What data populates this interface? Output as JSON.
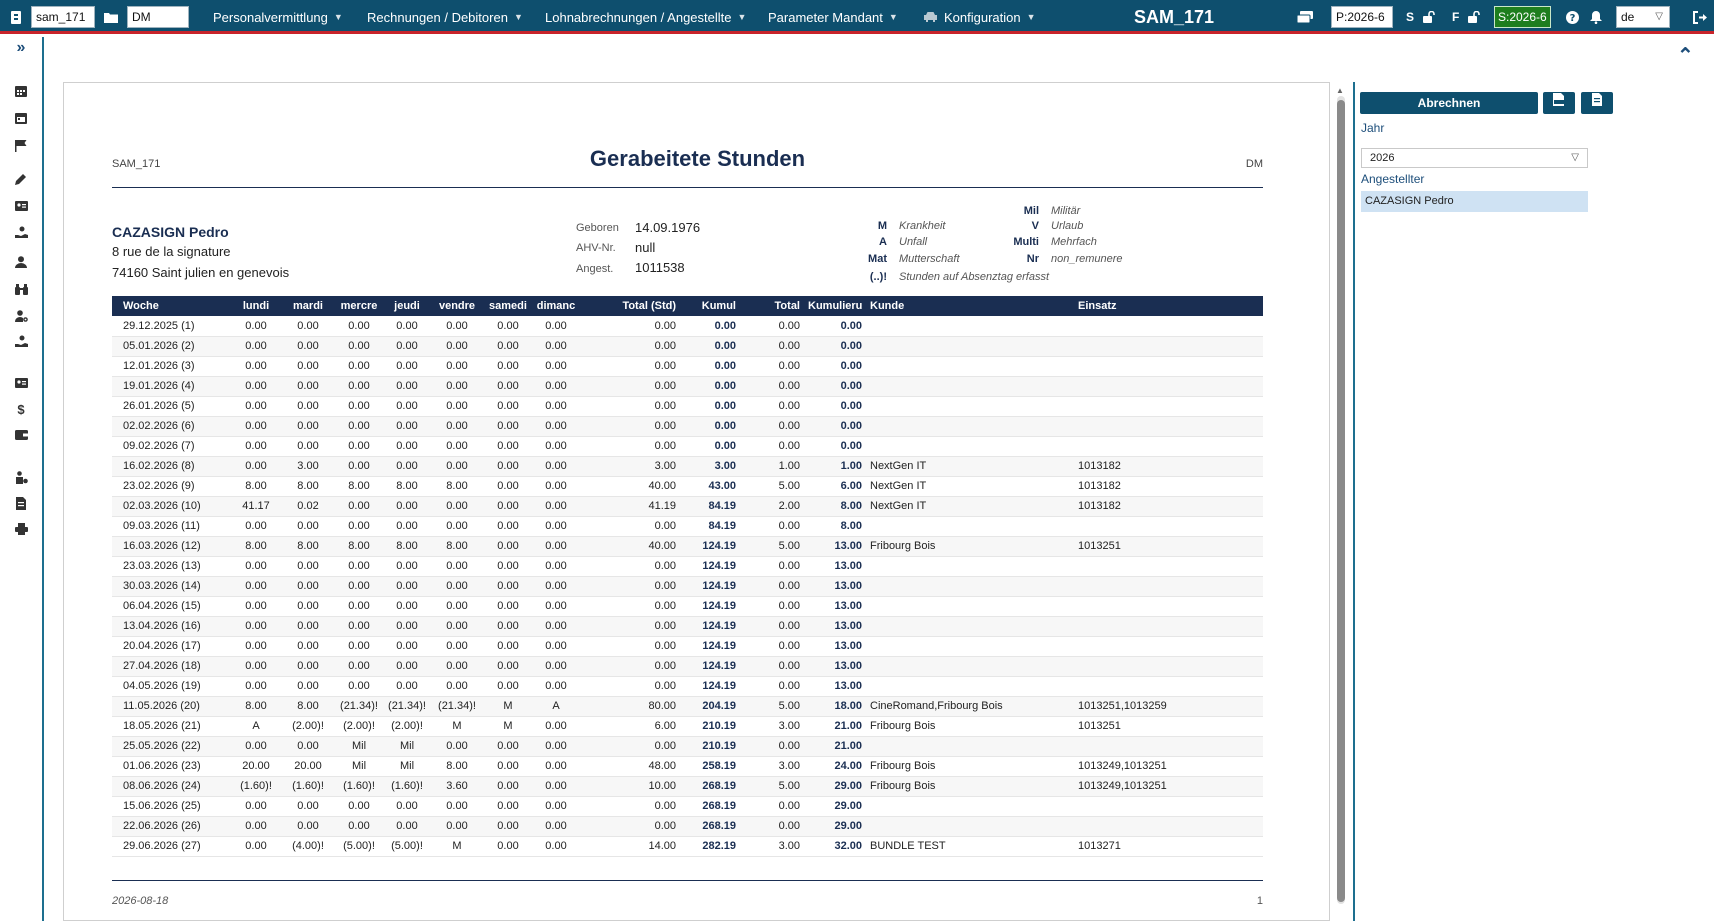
{
  "topbar": {
    "mandant_value": "sam_171",
    "folder_value": "DM",
    "menus": [
      {
        "label": "Personalvermittlung"
      },
      {
        "label": "Rechnungen / Debitoren"
      },
      {
        "label": "Lohnabrechnungen / Angestellte"
      },
      {
        "label": "Parameter Mandant"
      },
      {
        "label": "Konfiguration"
      }
    ],
    "app_title": "SAM_171",
    "period_value": "P:2026-6",
    "s_label": "S",
    "f_label": "F",
    "s_period": "S:2026-6",
    "language": "de"
  },
  "icons": {
    "sidebar": [
      "expand-icon",
      "calendar-icon",
      "calendar-icon",
      "flag-icon",
      "pencil-icon",
      "id-card-icon",
      "hand-coin-icon",
      "user-icon",
      "binoculars-icon",
      "user-cog-icon",
      "hand-coin-icon",
      "id-card-icon",
      "dollar-icon",
      "wallet-icon",
      "user-check-icon",
      "document-icon",
      "printer-icon"
    ]
  },
  "report": {
    "mandant": "SAM_171",
    "title": "Gerabeitete Stunden",
    "folder": "DM",
    "employee": {
      "name": "CAZASIGN Pedro",
      "street": "8 rue de la signature",
      "city": "74160 Saint julien en genevois"
    },
    "info": [
      {
        "label": "Geboren",
        "value": "14.09.1976"
      },
      {
        "label": "AHV-Nr.",
        "value": "null"
      },
      {
        "label": "Angest.",
        "value": "1011538"
      }
    ],
    "legend": [
      {
        "code": "Mil",
        "text": "Militär"
      },
      {
        "code": "M",
        "text": "Krankheit"
      },
      {
        "code": "V",
        "text": "Urlaub"
      },
      {
        "code": "A",
        "text": "Unfall"
      },
      {
        "code": "Multi",
        "text": "Mehrfach"
      },
      {
        "code": "Mat",
        "text": "Mutterschaft"
      },
      {
        "code": "Nr",
        "text": "non_remunere"
      },
      {
        "code": "(..)!",
        "text": "Stunden auf Absenztag erfasst"
      }
    ],
    "columns": [
      "Woche",
      "lundi",
      "mardi",
      "mercre",
      "jeudi",
      "vendre",
      "samedi",
      "dimanc",
      "Total (Std)",
      "Kumul",
      "Total",
      "Kumulieru",
      "Kunde",
      "Einsatz"
    ],
    "rows": [
      [
        "29.12.2025 (1)",
        "0.00",
        "0.00",
        "0.00",
        "0.00",
        "0.00",
        "0.00",
        "0.00",
        "0.00",
        "0.00",
        "0.00",
        "0.00",
        "",
        ""
      ],
      [
        "05.01.2026 (2)",
        "0.00",
        "0.00",
        "0.00",
        "0.00",
        "0.00",
        "0.00",
        "0.00",
        "0.00",
        "0.00",
        "0.00",
        "0.00",
        "",
        ""
      ],
      [
        "12.01.2026 (3)",
        "0.00",
        "0.00",
        "0.00",
        "0.00",
        "0.00",
        "0.00",
        "0.00",
        "0.00",
        "0.00",
        "0.00",
        "0.00",
        "",
        ""
      ],
      [
        "19.01.2026 (4)",
        "0.00",
        "0.00",
        "0.00",
        "0.00",
        "0.00",
        "0.00",
        "0.00",
        "0.00",
        "0.00",
        "0.00",
        "0.00",
        "",
        ""
      ],
      [
        "26.01.2026 (5)",
        "0.00",
        "0.00",
        "0.00",
        "0.00",
        "0.00",
        "0.00",
        "0.00",
        "0.00",
        "0.00",
        "0.00",
        "0.00",
        "",
        ""
      ],
      [
        "02.02.2026 (6)",
        "0.00",
        "0.00",
        "0.00",
        "0.00",
        "0.00",
        "0.00",
        "0.00",
        "0.00",
        "0.00",
        "0.00",
        "0.00",
        "",
        ""
      ],
      [
        "09.02.2026 (7)",
        "0.00",
        "0.00",
        "0.00",
        "0.00",
        "0.00",
        "0.00",
        "0.00",
        "0.00",
        "0.00",
        "0.00",
        "0.00",
        "",
        ""
      ],
      [
        "16.02.2026 (8)",
        "0.00",
        "3.00",
        "0.00",
        "0.00",
        "0.00",
        "0.00",
        "0.00",
        "3.00",
        "3.00",
        "1.00",
        "1.00",
        "NextGen IT",
        "1013182"
      ],
      [
        "23.02.2026 (9)",
        "8.00",
        "8.00",
        "8.00",
        "8.00",
        "8.00",
        "0.00",
        "0.00",
        "40.00",
        "43.00",
        "5.00",
        "6.00",
        "NextGen IT",
        "1013182"
      ],
      [
        "02.03.2026 (10)",
        "41.17",
        "0.02",
        "0.00",
        "0.00",
        "0.00",
        "0.00",
        "0.00",
        "41.19",
        "84.19",
        "2.00",
        "8.00",
        "NextGen IT",
        "1013182"
      ],
      [
        "09.03.2026 (11)",
        "0.00",
        "0.00",
        "0.00",
        "0.00",
        "0.00",
        "0.00",
        "0.00",
        "0.00",
        "84.19",
        "0.00",
        "8.00",
        "",
        ""
      ],
      [
        "16.03.2026 (12)",
        "8.00",
        "8.00",
        "8.00",
        "8.00",
        "8.00",
        "0.00",
        "0.00",
        "40.00",
        "124.19",
        "5.00",
        "13.00",
        "Fribourg Bois",
        "1013251"
      ],
      [
        "23.03.2026 (13)",
        "0.00",
        "0.00",
        "0.00",
        "0.00",
        "0.00",
        "0.00",
        "0.00",
        "0.00",
        "124.19",
        "0.00",
        "13.00",
        "",
        ""
      ],
      [
        "30.03.2026 (14)",
        "0.00",
        "0.00",
        "0.00",
        "0.00",
        "0.00",
        "0.00",
        "0.00",
        "0.00",
        "124.19",
        "0.00",
        "13.00",
        "",
        ""
      ],
      [
        "06.04.2026 (15)",
        "0.00",
        "0.00",
        "0.00",
        "0.00",
        "0.00",
        "0.00",
        "0.00",
        "0.00",
        "124.19",
        "0.00",
        "13.00",
        "",
        ""
      ],
      [
        "13.04.2026 (16)",
        "0.00",
        "0.00",
        "0.00",
        "0.00",
        "0.00",
        "0.00",
        "0.00",
        "0.00",
        "124.19",
        "0.00",
        "13.00",
        "",
        ""
      ],
      [
        "20.04.2026 (17)",
        "0.00",
        "0.00",
        "0.00",
        "0.00",
        "0.00",
        "0.00",
        "0.00",
        "0.00",
        "124.19",
        "0.00",
        "13.00",
        "",
        ""
      ],
      [
        "27.04.2026 (18)",
        "0.00",
        "0.00",
        "0.00",
        "0.00",
        "0.00",
        "0.00",
        "0.00",
        "0.00",
        "124.19",
        "0.00",
        "13.00",
        "",
        ""
      ],
      [
        "04.05.2026 (19)",
        "0.00",
        "0.00",
        "0.00",
        "0.00",
        "0.00",
        "0.00",
        "0.00",
        "0.00",
        "124.19",
        "0.00",
        "13.00",
        "",
        ""
      ],
      [
        "11.05.2026 (20)",
        "8.00",
        "8.00",
        "(21.34)!",
        "(21.34)!",
        "(21.34)!",
        "M",
        "A",
        "80.00",
        "204.19",
        "5.00",
        "18.00",
        "CineRomand,Fribourg Bois",
        "1013251,1013259"
      ],
      [
        "18.05.2026 (21)",
        "A",
        "(2.00)!",
        "(2.00)!",
        "(2.00)!",
        "M",
        "M",
        "0.00",
        "6.00",
        "210.19",
        "3.00",
        "21.00",
        "Fribourg Bois",
        "1013251"
      ],
      [
        "25.05.2026 (22)",
        "0.00",
        "0.00",
        "Mil",
        "Mil",
        "0.00",
        "0.00",
        "0.00",
        "0.00",
        "210.19",
        "0.00",
        "21.00",
        "",
        ""
      ],
      [
        "01.06.2026 (23)",
        "20.00",
        "20.00",
        "Mil",
        "Mil",
        "8.00",
        "0.00",
        "0.00",
        "48.00",
        "258.19",
        "3.00",
        "24.00",
        "Fribourg Bois",
        "1013249,1013251"
      ],
      [
        "08.06.2026 (24)",
        "(1.60)!",
        "(1.60)!",
        "(1.60)!",
        "(1.60)!",
        "3.60",
        "0.00",
        "0.00",
        "10.00",
        "268.19",
        "5.00",
        "29.00",
        "Fribourg Bois",
        "1013249,1013251"
      ],
      [
        "15.06.2026 (25)",
        "0.00",
        "0.00",
        "0.00",
        "0.00",
        "0.00",
        "0.00",
        "0.00",
        "0.00",
        "268.19",
        "0.00",
        "29.00",
        "",
        ""
      ],
      [
        "22.06.2026 (26)",
        "0.00",
        "0.00",
        "0.00",
        "0.00",
        "0.00",
        "0.00",
        "0.00",
        "0.00",
        "268.19",
        "0.00",
        "29.00",
        "",
        ""
      ],
      [
        "29.06.2026 (27)",
        "0.00",
        "(4.00)!",
        "(5.00)!",
        "(5.00)!",
        "M",
        "0.00",
        "0.00",
        "14.00",
        "282.19",
        "3.00",
        "32.00",
        "BUNDLE TEST",
        "1013271"
      ]
    ],
    "footer_date": "2026-08-18",
    "footer_page": "1"
  },
  "right_panel": {
    "primary_button": "Abrechnen",
    "year_label": "Jahr",
    "year_value": "2026",
    "employee_label": "Angestellter",
    "employee_selected": "CAZASIGN Pedro"
  },
  "colors": {
    "topbar": "#0e4f6e",
    "accent_red": "#c8242b",
    "heading_navy": "#1a2e52",
    "selection": "#cfe2f3",
    "status_green": "#1e7e1e"
  }
}
